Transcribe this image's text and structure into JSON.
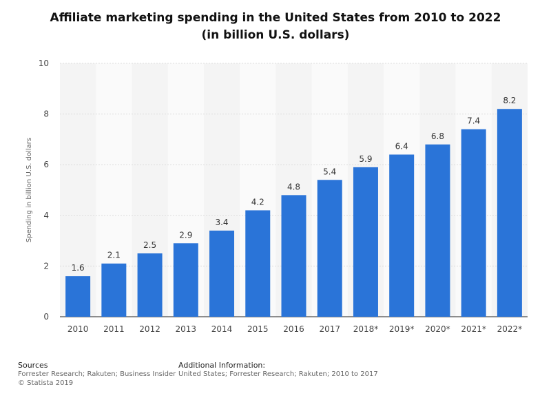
{
  "chart_data": {
    "type": "bar",
    "title_line1": "Affiliate marketing spending in the United States from 2010 to 2022",
    "title_line2": "(in billion U.S. dollars)",
    "xlabel": "",
    "ylabel": "Spending in billion U.S. dollars",
    "ylim": [
      0,
      10
    ],
    "yticks": [
      0,
      2,
      4,
      6,
      8,
      10
    ],
    "categories": [
      "2010",
      "2011",
      "2012",
      "2013",
      "2014",
      "2015",
      "2016",
      "2017",
      "2018*",
      "2019*",
      "2020*",
      "2021*",
      "2022*"
    ],
    "values": [
      1.6,
      2.1,
      2.5,
      2.9,
      3.4,
      4.2,
      4.8,
      5.4,
      5.9,
      6.4,
      6.8,
      7.4,
      8.2
    ],
    "value_labels": [
      "1.6",
      "2.1",
      "2.5",
      "2.9",
      "3.4",
      "4.2",
      "4.8",
      "5.4",
      "5.9",
      "6.4",
      "6.8",
      "7.4",
      "8.2"
    ],
    "grid": true,
    "bar_color": "#2a74d8"
  },
  "footer": {
    "sources_heading": "Sources",
    "sources_text": "Forrester Research; Rakuten; Business Insider",
    "copyright": "© Statista 2019",
    "additional_heading": "Additional Information:",
    "additional_text": "United States; Forrester Research; Rakuten; 2010 to 2017"
  }
}
